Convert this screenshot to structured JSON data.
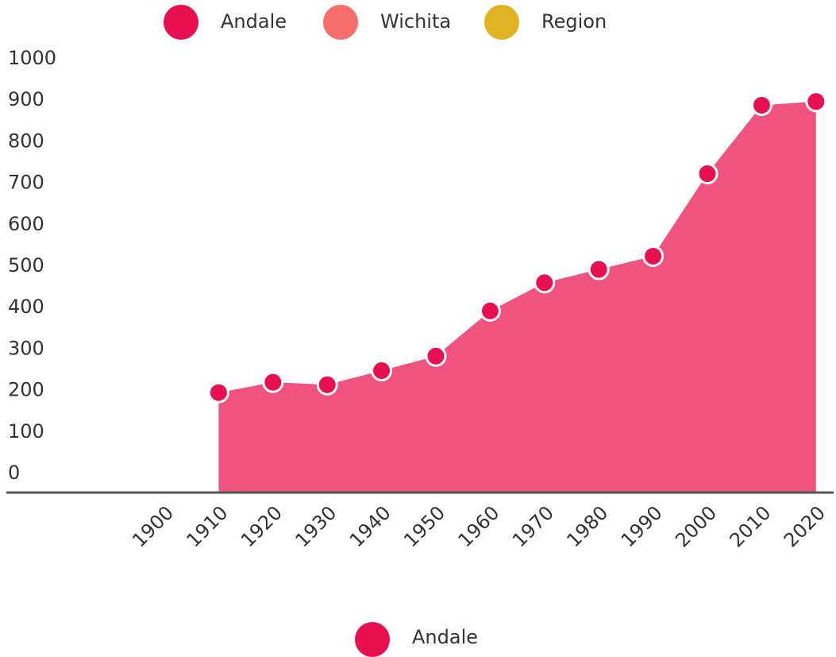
{
  "chart_data": {
    "type": "area",
    "categories": [
      "1900",
      "1910",
      "1920",
      "1930",
      "1940",
      "1950",
      "1960",
      "1970",
      "1980",
      "1990",
      "2000",
      "2010",
      "2020"
    ],
    "series": [
      {
        "name": "Andale",
        "color": "#e8104f",
        "fill": "#f0547e",
        "values": [
          null,
          195,
          220,
          214,
          248,
          283,
          392,
          460,
          492,
          524,
          723,
          888,
          897
        ]
      },
      {
        "name": "Wichita",
        "color": "#f56e6a",
        "values": [
          null,
          null,
          null,
          null,
          null,
          null,
          null,
          null,
          null,
          null,
          null,
          null,
          null
        ]
      },
      {
        "name": "Region",
        "color": "#e1b223",
        "values": [
          null,
          null,
          null,
          null,
          null,
          null,
          null,
          null,
          null,
          null,
          null,
          null,
          null
        ]
      }
    ],
    "ylim": [
      -46,
      1000
    ],
    "yticks": [
      0,
      100,
      200,
      300,
      400,
      500,
      600,
      700,
      800,
      900,
      1000
    ],
    "grid": false
  }
}
